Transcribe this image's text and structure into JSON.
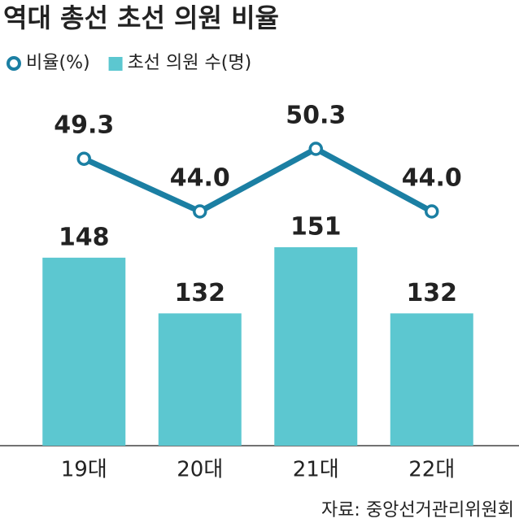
{
  "chart_data": {
    "type": "combo",
    "title": "역대 총선 초선 의원 비율",
    "source": "자료: 중앙선거관리위원회",
    "categories": [
      "19대",
      "20대",
      "21대",
      "22대"
    ],
    "series": [
      {
        "name": "비율(%)",
        "type": "line",
        "color": "#1b7fa3",
        "values": [
          49.3,
          44.0,
          50.3,
          44.0
        ],
        "value_labels": [
          "49.3",
          "44.0",
          "50.3",
          "44.0"
        ]
      },
      {
        "name": "초선 의원 수(명)",
        "type": "bar",
        "color": "#5cc7d0",
        "values": [
          148,
          132,
          151,
          132
        ]
      }
    ]
  }
}
